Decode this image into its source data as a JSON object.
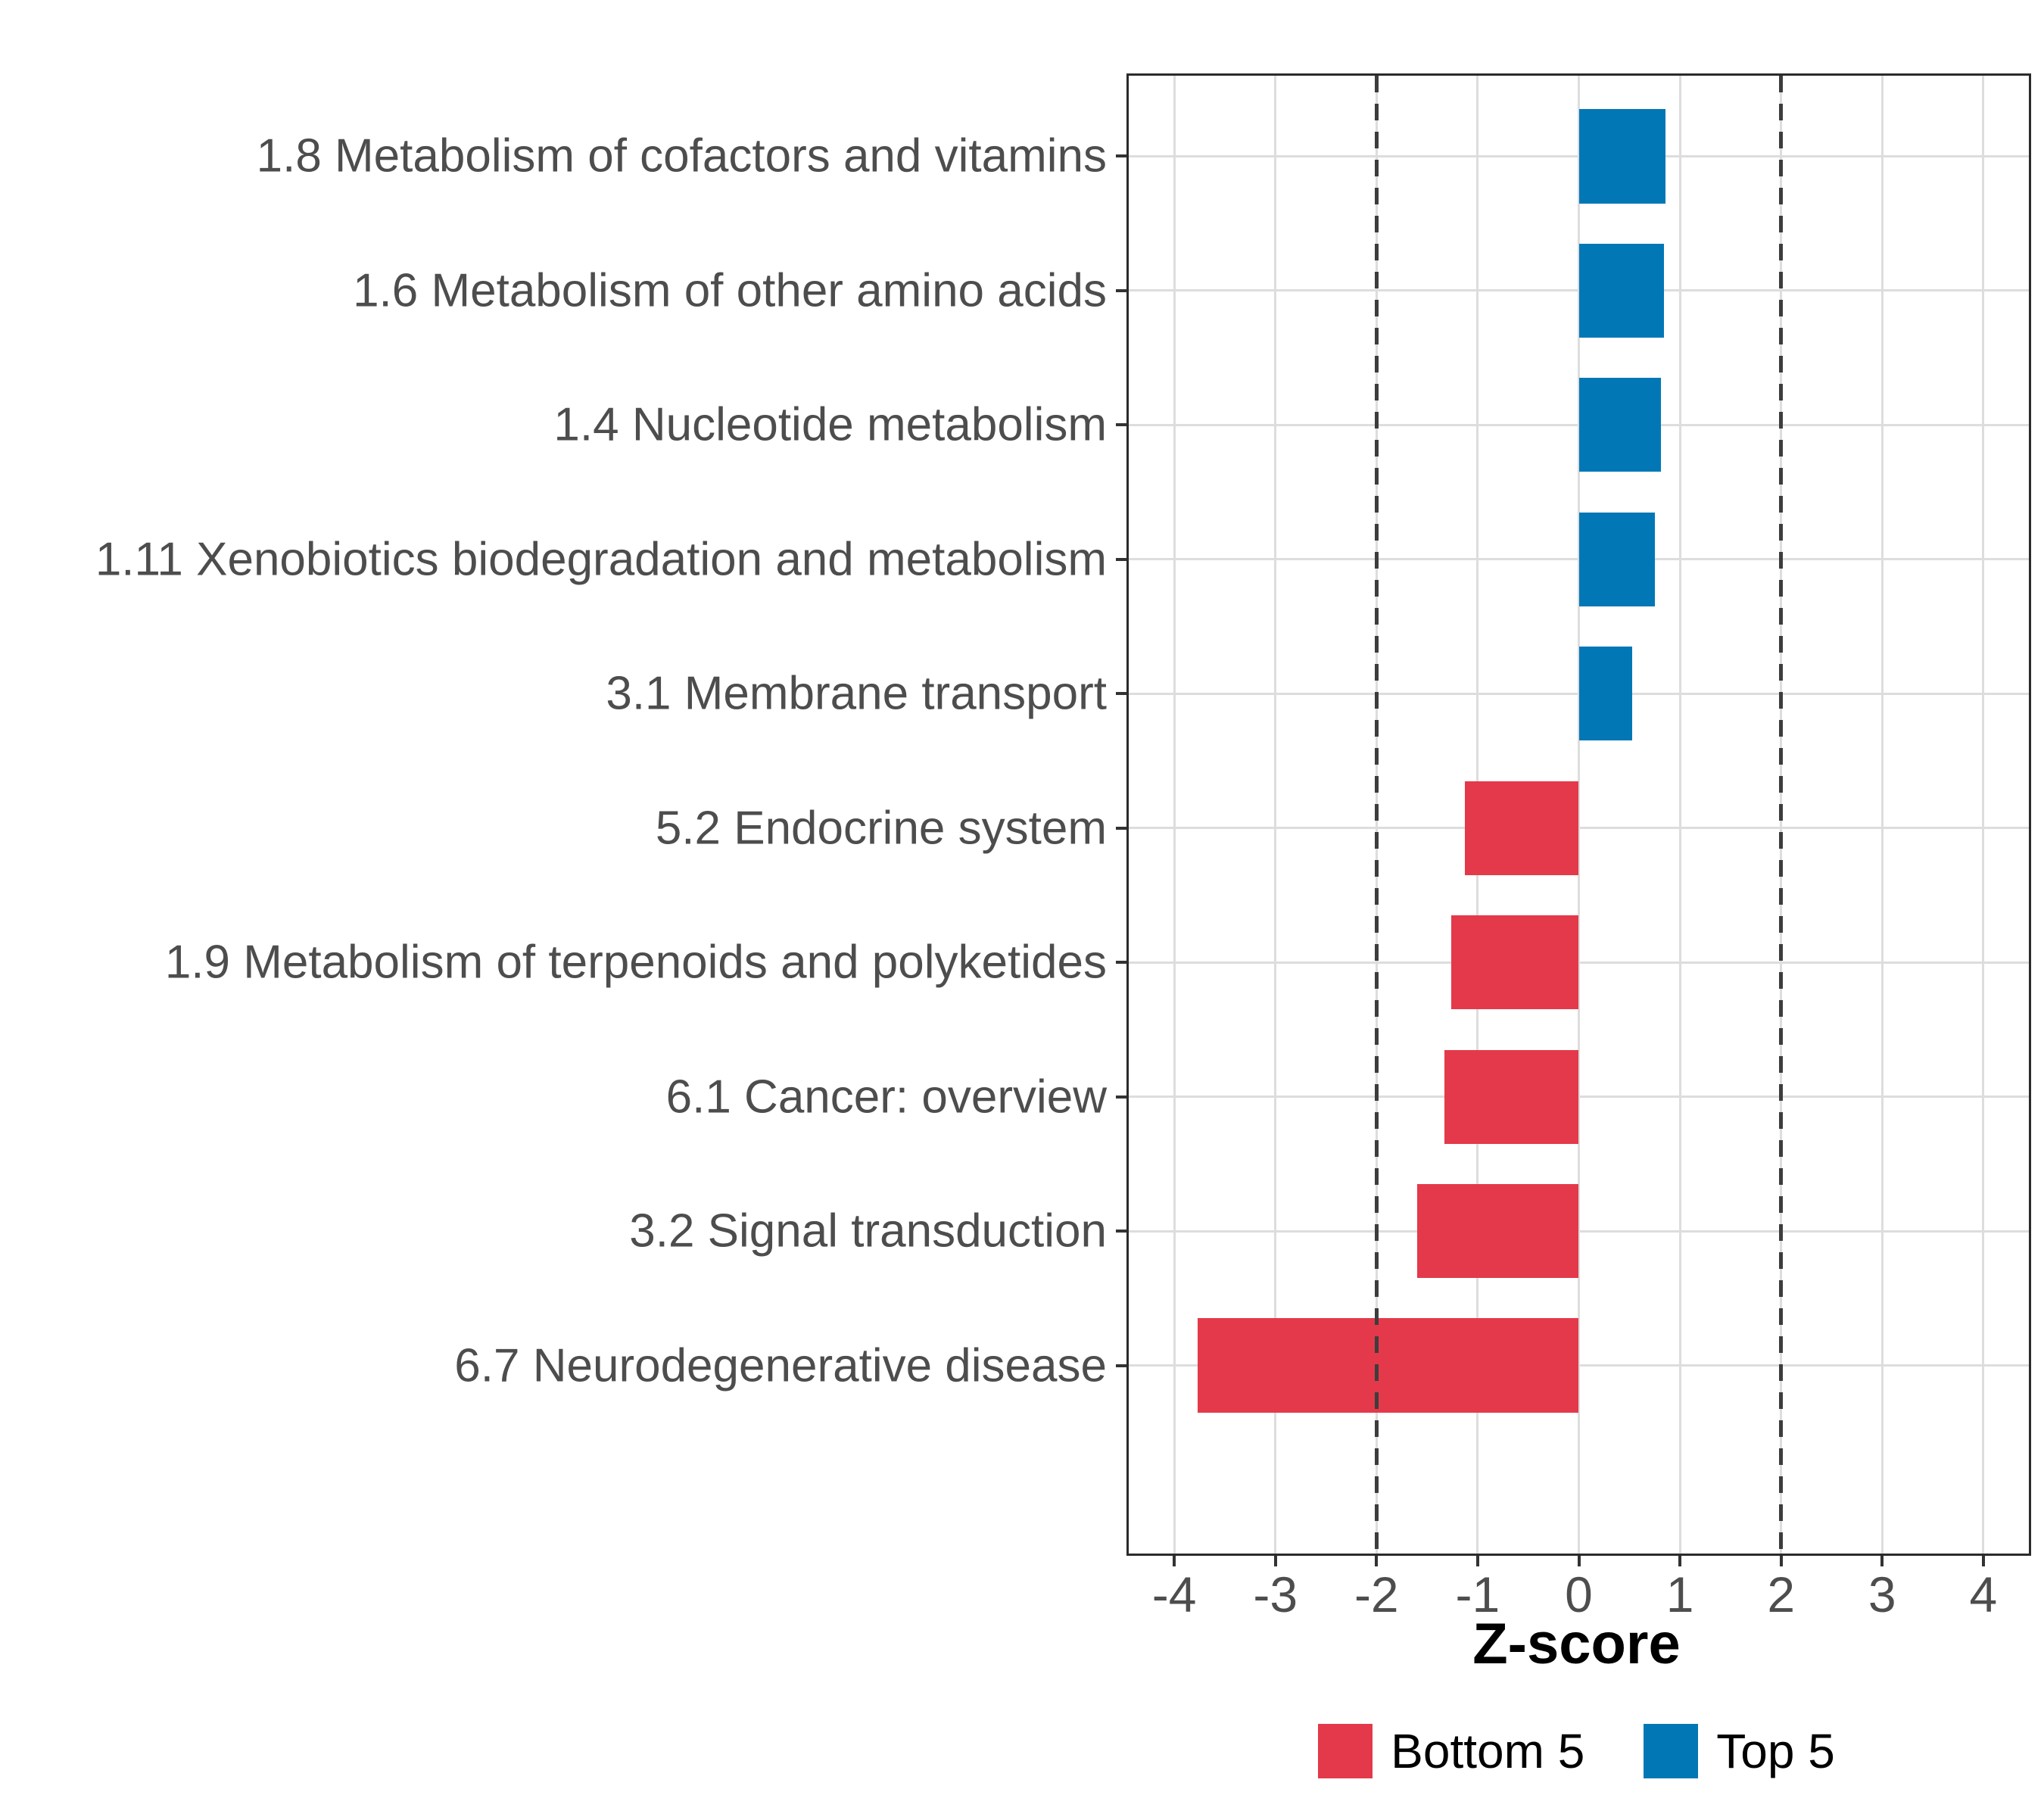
{
  "chart_data": {
    "type": "bar",
    "orientation": "horizontal",
    "title": "",
    "xlabel": "Z-score",
    "ylabel": "",
    "xlim": [
      -4.45,
      4.45
    ],
    "x_ticks": [
      -4,
      -3,
      -2,
      -1,
      0,
      1,
      2,
      3,
      4
    ],
    "x_tick_labels": [
      "-4",
      "-3",
      "-2",
      "-1",
      "0",
      "1",
      "2",
      "3",
      "4"
    ],
    "reference_lines": [
      -2,
      2
    ],
    "grid": "major-only",
    "legend_position": "bottom",
    "bars": [
      {
        "label": "1.8 Metabolism of cofactors and vitamins",
        "value": 0.86,
        "group": "Top 5"
      },
      {
        "label": "1.6 Metabolism of other amino acids",
        "value": 0.84,
        "group": "Top 5"
      },
      {
        "label": "1.4 Nucleotide metabolism",
        "value": 0.81,
        "group": "Top 5"
      },
      {
        "label": "1.11 Xenobiotics biodegradation and metabolism",
        "value": 0.75,
        "group": "Top 5"
      },
      {
        "label": "3.1 Membrane transport",
        "value": 0.53,
        "group": "Top 5"
      },
      {
        "label": "5.2 Endocrine system",
        "value": -1.13,
        "group": "Bottom 5"
      },
      {
        "label": "1.9 Metabolism of terpenoids and polyketides",
        "value": -1.26,
        "group": "Bottom 5"
      },
      {
        "label": "6.1 Cancer: overview",
        "value": -1.33,
        "group": "Bottom 5"
      },
      {
        "label": "3.2 Signal transduction",
        "value": -1.6,
        "group": "Bottom 5"
      },
      {
        "label": "6.7 Neurodegenerative disease",
        "value": -3.77,
        "group": "Bottom 5"
      }
    ],
    "legend": [
      {
        "label": "Bottom 5",
        "color": "#E4394A"
      },
      {
        "label": "Top 5",
        "color": "#0277B5"
      }
    ],
    "colors": {
      "bottom5": "#E4394A",
      "top5": "#0277B5",
      "gridline": "#DDDDDD",
      "panel_border": "#2b2b2b",
      "reference_line": "#3d3d3d",
      "axis_text": "#4d4d4d",
      "tick_mark": "#333333",
      "axis_title": "#000000",
      "background": "#ffffff"
    }
  }
}
